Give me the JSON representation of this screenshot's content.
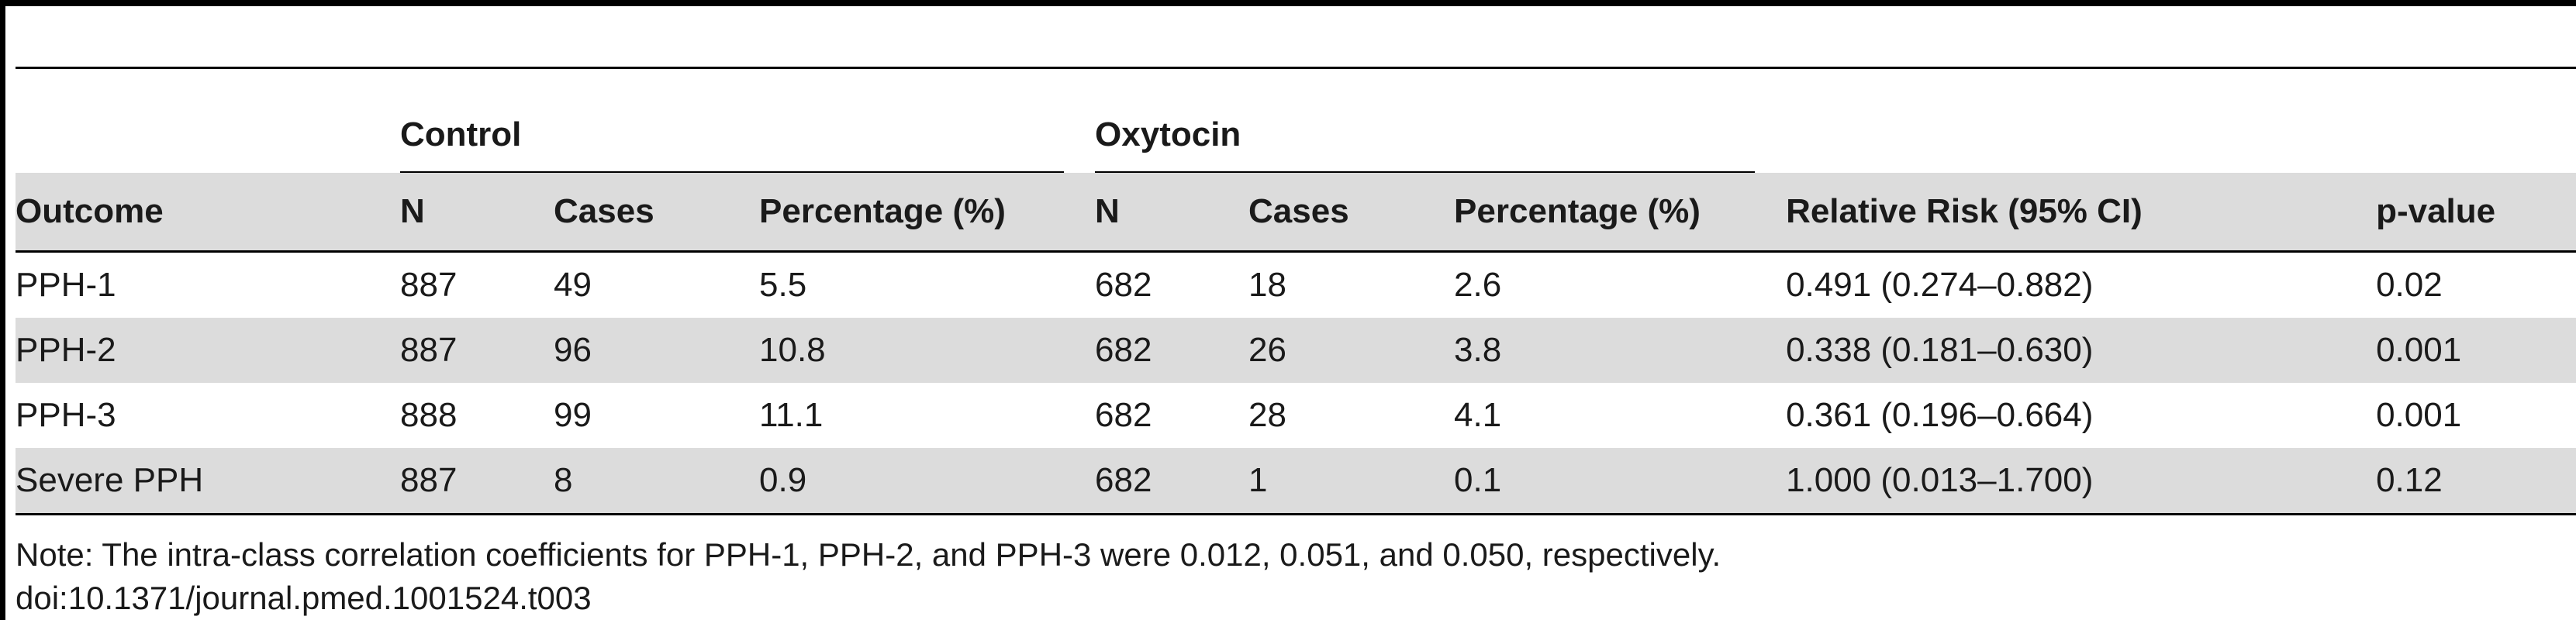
{
  "table": {
    "groups": {
      "control": "Control",
      "oxytocin": "Oxytocin"
    },
    "headers": [
      "Outcome",
      "N",
      "Cases",
      "Percentage (%)",
      "N",
      "Cases",
      "Percentage (%)",
      "Relative Risk (95% CI)",
      "p-value"
    ],
    "rows": [
      [
        "PPH-1",
        "887",
        "49",
        "5.5",
        "682",
        "18",
        "2.6",
        "0.491 (0.274–0.882)",
        "0.02"
      ],
      [
        "PPH-2",
        "887",
        "96",
        "10.8",
        "682",
        "26",
        "3.8",
        "0.338 (0.181–0.630)",
        "0.001"
      ],
      [
        "PPH-3",
        "888",
        "99",
        "11.1",
        "682",
        "28",
        "4.1",
        "0.361 (0.196–0.664)",
        "0.001"
      ],
      [
        "Severe PPH",
        "887",
        "8",
        "0.9",
        "682",
        "1",
        "0.1",
        "1.000 (0.013–1.700)",
        "0.12"
      ]
    ]
  },
  "notes": {
    "note": "Note: The intra-class correlation coefficients for PPH-1, PPH-2, and PPH-3 were 0.012, 0.051, and 0.050, respectively.",
    "doi": "doi:10.1371/journal.pmed.1001524.t003"
  }
}
